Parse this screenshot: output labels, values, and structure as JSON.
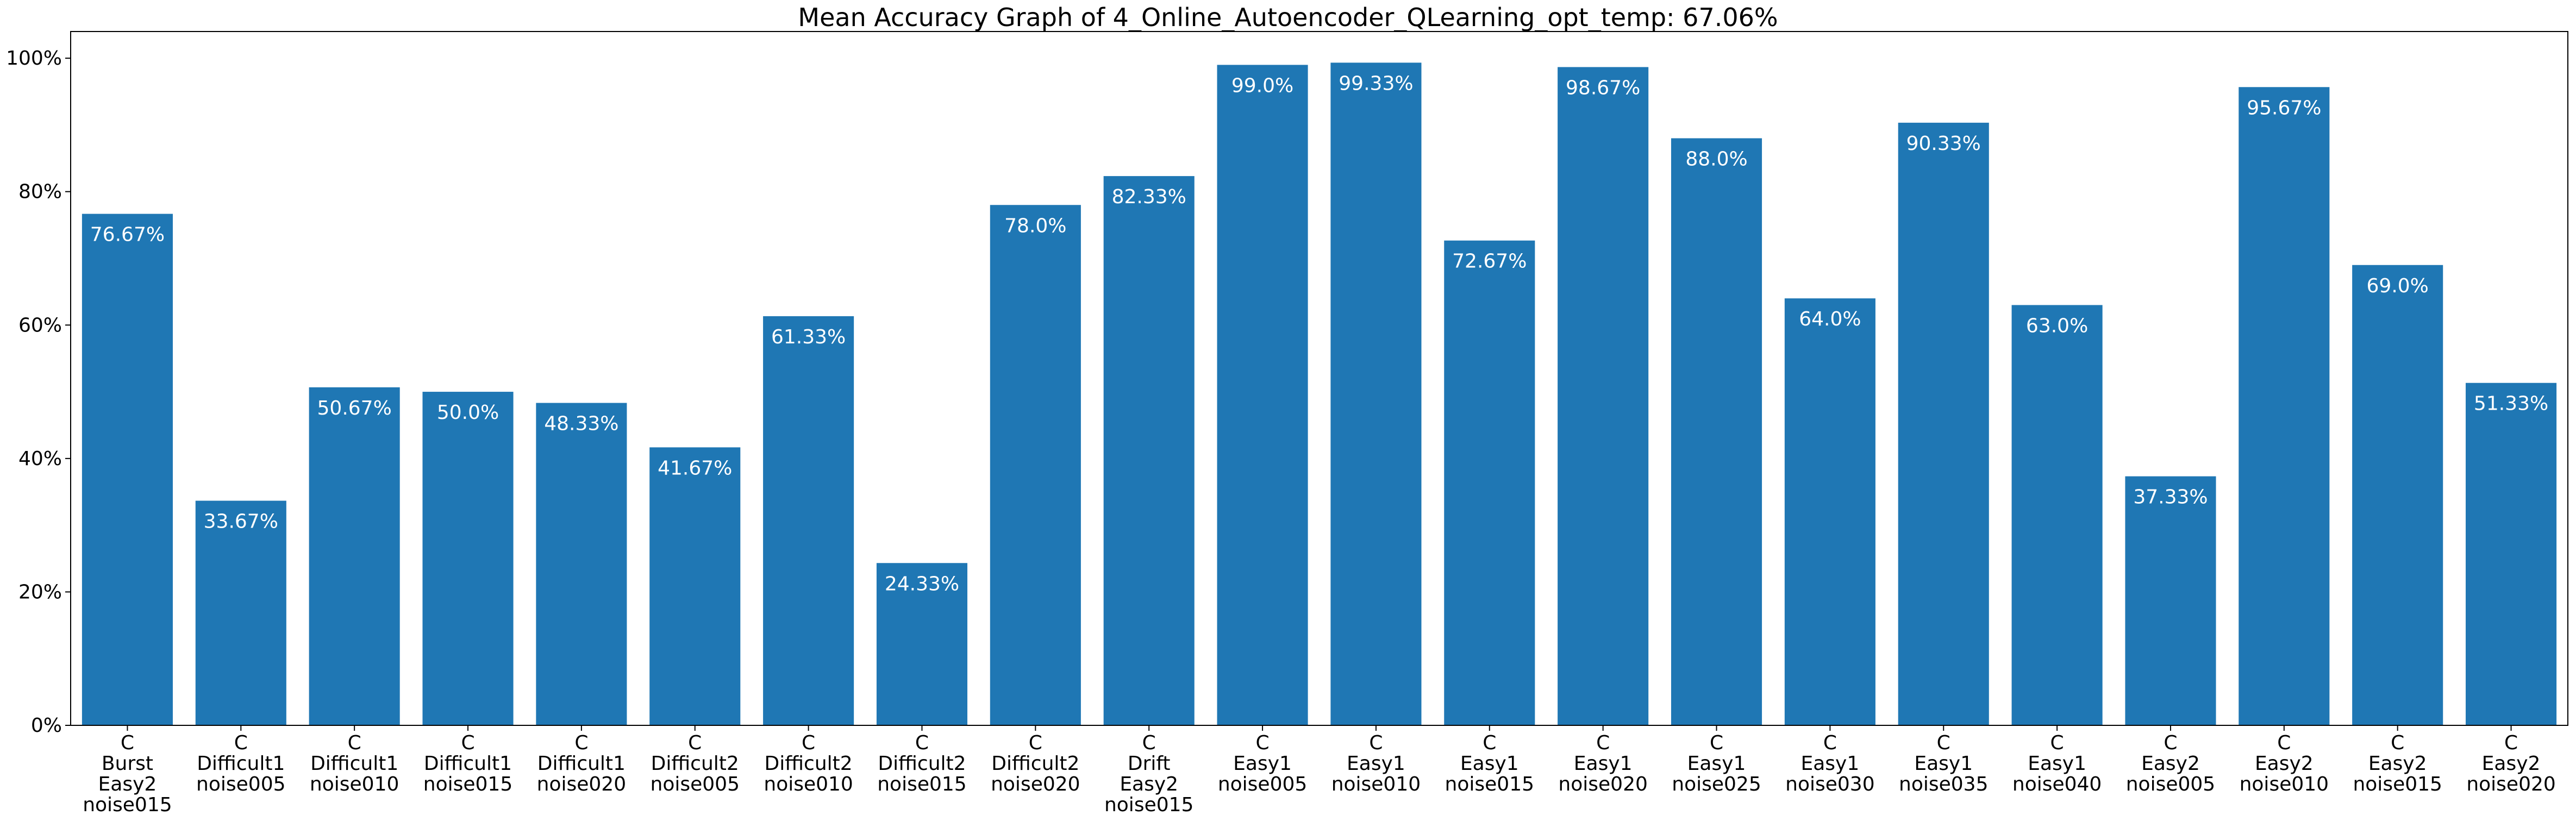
{
  "chart_data": {
    "type": "bar",
    "title": "Mean Accuracy Graph of 4_Online_Autoencoder_QLearning_opt_temp: 67.06%",
    "xlabel": "",
    "ylabel": "",
    "ylim": [
      0,
      104
    ],
    "grid": false,
    "legend": "none",
    "bar_color": "#1f77b4",
    "label_color": "#ffffff",
    "y_ticks": [
      {
        "value": 0,
        "label": "0%"
      },
      {
        "value": 20,
        "label": "20%"
      },
      {
        "value": 40,
        "label": "40%"
      },
      {
        "value": 60,
        "label": "60%"
      },
      {
        "value": 80,
        "label": "80%"
      },
      {
        "value": 100,
        "label": "100%"
      }
    ],
    "categories": [
      [
        "C",
        "Burst",
        "Easy2",
        "noise015"
      ],
      [
        "C",
        "Difficult1",
        "noise005"
      ],
      [
        "C",
        "Difficult1",
        "noise010"
      ],
      [
        "C",
        "Difficult1",
        "noise015"
      ],
      [
        "C",
        "Difficult1",
        "noise020"
      ],
      [
        "C",
        "Difficult2",
        "noise005"
      ],
      [
        "C",
        "Difficult2",
        "noise010"
      ],
      [
        "C",
        "Difficult2",
        "noise015"
      ],
      [
        "C",
        "Difficult2",
        "noise020"
      ],
      [
        "C",
        "Drift",
        "Easy2",
        "noise015"
      ],
      [
        "C",
        "Easy1",
        "noise005"
      ],
      [
        "C",
        "Easy1",
        "noise010"
      ],
      [
        "C",
        "Easy1",
        "noise015"
      ],
      [
        "C",
        "Easy1",
        "noise020"
      ],
      [
        "C",
        "Easy1",
        "noise025"
      ],
      [
        "C",
        "Easy1",
        "noise030"
      ],
      [
        "C",
        "Easy1",
        "noise035"
      ],
      [
        "C",
        "Easy1",
        "noise040"
      ],
      [
        "C",
        "Easy2",
        "noise005"
      ],
      [
        "C",
        "Easy2",
        "noise010"
      ],
      [
        "C",
        "Easy2",
        "noise015"
      ],
      [
        "C",
        "Easy2",
        "noise020"
      ]
    ],
    "values": [
      76.67,
      33.67,
      50.67,
      50.0,
      48.33,
      41.67,
      61.33,
      24.33,
      78.0,
      82.33,
      99.0,
      99.33,
      72.67,
      98.67,
      88.0,
      64.0,
      90.33,
      63.0,
      37.33,
      95.67,
      69.0,
      51.33
    ],
    "value_labels": [
      "76.67%",
      "33.67%",
      "50.67%",
      "50.0%",
      "48.33%",
      "41.67%",
      "61.33%",
      "24.33%",
      "78.0%",
      "82.33%",
      "99.0%",
      "99.33%",
      "72.67%",
      "98.67%",
      "88.0%",
      "64.0%",
      "90.33%",
      "63.0%",
      "37.33%",
      "95.67%",
      "69.0%",
      "51.33%"
    ]
  }
}
